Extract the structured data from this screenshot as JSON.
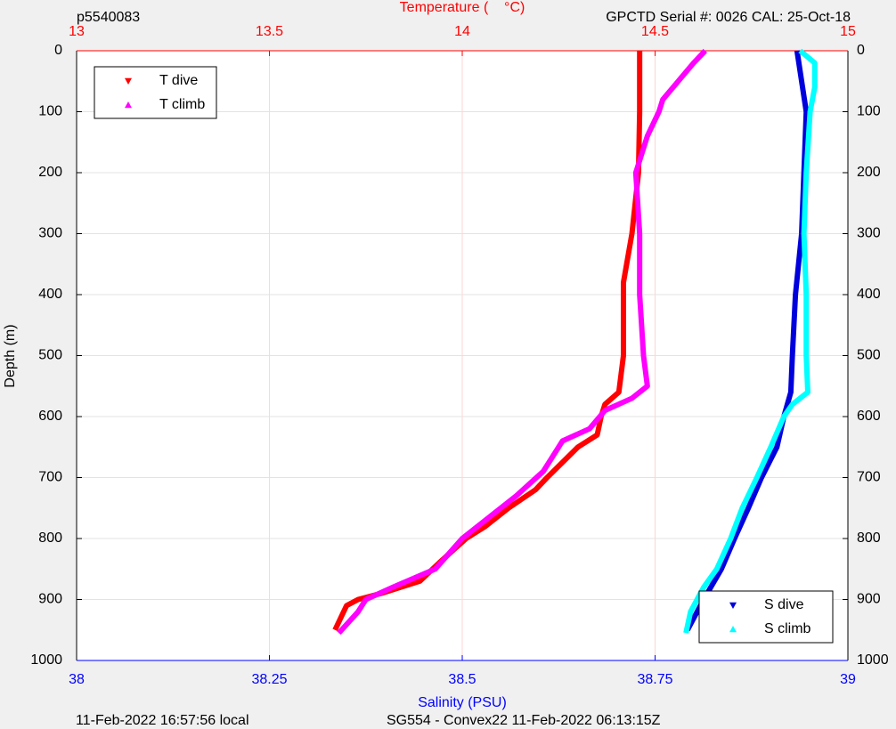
{
  "chart_data": {
    "type": "line",
    "top_left_label": "p5540083",
    "top_right_label": "GPCTD Serial #: 0026 CAL: 25-Oct-18",
    "x2label": "Temperature (    °C)",
    "xlabel": "Salinity (PSU)",
    "ylabel": "Depth (m)",
    "bottom_left_label": "11-Feb-2022 16:57:56 local",
    "bottom_right_label": "SG554 - Convex22 11-Feb-2022 06:13:15Z",
    "xlim": [
      38,
      39
    ],
    "xticks": [
      38,
      38.25,
      38.5,
      38.75,
      39
    ],
    "x2lim": [
      13,
      15
    ],
    "x2ticks": [
      13,
      13.5,
      14,
      14.5,
      15
    ],
    "ylim": [
      0,
      1000
    ],
    "yticks": [
      0,
      100,
      200,
      300,
      400,
      500,
      600,
      700,
      800,
      900,
      1000
    ],
    "y_reversed": true,
    "grid": true,
    "x_color": "#0000ff",
    "x2_color": "#ff0000",
    "x2_legend": "upper left",
    "x_legend": "lower right",
    "series": [
      {
        "name": "T dive",
        "color": "#ff0000",
        "axis": "x2",
        "marker": "down",
        "x": [
          14.46,
          14.46,
          14.457,
          14.44,
          14.418,
          14.418,
          14.406,
          14.37,
          14.36,
          14.35,
          14.3,
          14.22,
          14.19,
          14.12,
          14.06,
          14.01,
          13.94,
          13.89,
          13.79,
          13.73,
          13.7,
          13.67
        ],
        "values": [
          0,
          100,
          200,
          300,
          380,
          500,
          560,
          580,
          600,
          630,
          650,
          700,
          720,
          750,
          780,
          800,
          840,
          870,
          890,
          900,
          910,
          950
        ]
      },
      {
        "name": "T climb",
        "color": "#ff00ff",
        "axis": "x2",
        "marker": "up",
        "x": [
          14.63,
          14.6,
          14.56,
          14.52,
          14.51,
          14.48,
          14.45,
          14.46,
          14.46,
          14.47,
          14.48,
          14.44,
          14.37,
          14.33,
          14.26,
          14.21,
          14.14,
          14.08,
          14.0,
          13.93,
          13.82,
          13.75,
          13.73,
          13.68
        ],
        "values": [
          0,
          20,
          50,
          80,
          100,
          140,
          200,
          300,
          400,
          500,
          550,
          570,
          590,
          620,
          640,
          690,
          730,
          760,
          800,
          850,
          880,
          900,
          920,
          955
        ]
      },
      {
        "name": "S dive",
        "color": "#0000dd",
        "axis": "x",
        "marker": "down",
        "x": [
          38.934,
          38.946,
          38.943,
          38.94,
          38.932,
          38.928,
          38.926,
          38.917,
          38.908,
          38.888,
          38.871,
          38.853,
          38.836,
          38.813,
          38.792
        ],
        "values": [
          0,
          100,
          200,
          300,
          400,
          500,
          560,
          600,
          650,
          700,
          750,
          800,
          850,
          900,
          950
        ]
      },
      {
        "name": "S climb",
        "color": "#00ffff",
        "axis": "x",
        "marker": "up",
        "x": [
          38.938,
          38.957,
          38.957,
          38.951,
          38.946,
          38.943,
          38.946,
          38.946,
          38.948,
          38.928,
          38.917,
          38.9,
          38.882,
          38.863,
          38.848,
          38.83,
          38.813,
          38.796,
          38.79
        ],
        "values": [
          0,
          20,
          60,
          100,
          200,
          300,
          400,
          500,
          560,
          580,
          600,
          650,
          700,
          750,
          800,
          850,
          880,
          920,
          955
        ]
      }
    ]
  }
}
